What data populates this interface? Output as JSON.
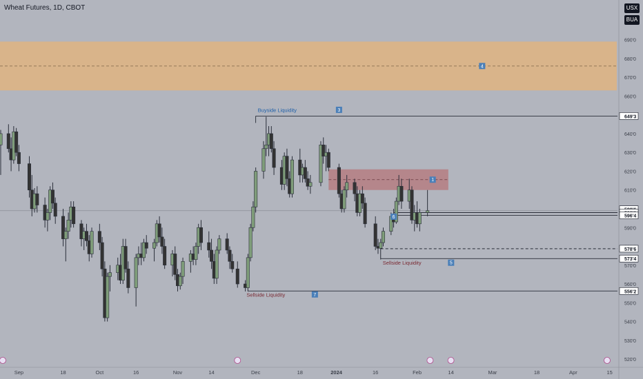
{
  "header": {
    "title": "Wheat Futures, 1D, CBOT",
    "currency": "USX",
    "unit": "BUA"
  },
  "colors": {
    "background": "#b2b5be",
    "up_candle": "#7f9d7a",
    "down_candle": "#333333",
    "supply_zone": "#d9b48a",
    "ob_zone": "#b57e83",
    "buyside_text": "#1e5fa8",
    "sellside_text": "#7a2a33",
    "marker": "#4a7fb8"
  },
  "chart_data": {
    "type": "candlestick",
    "symbol": "Wheat Futures",
    "interval": "1D",
    "exchange": "CBOT",
    "y_axis": {
      "ticks": [
        "690'0",
        "680'0",
        "670'0",
        "660'0",
        "650'0",
        "640'0",
        "630'0",
        "620'0",
        "610'0",
        "600'0",
        "590'0",
        "580'0",
        "570'0",
        "560'0",
        "550'0",
        "540'0",
        "530'0",
        "520'0"
      ],
      "tick_values": [
        690,
        680,
        670,
        660,
        650,
        640,
        630,
        620,
        610,
        600,
        590,
        580,
        570,
        560,
        550,
        540,
        530,
        520
      ],
      "range": [
        516,
        706
      ]
    },
    "x_axis": {
      "ticks": [
        "Sep",
        "18",
        "Oct",
        "16",
        "Nov",
        "14",
        "Dec",
        "18",
        "2024",
        "16",
        "Feb",
        "14",
        "Mar",
        "18",
        "Apr",
        "15"
      ],
      "start_date": "2023-08-25",
      "end_date": "2024-04-18"
    },
    "price_labels": [
      {
        "text": "649'3",
        "value": 649.375
      },
      {
        "text": "599'6",
        "value": 599.75
      },
      {
        "text": "598'0",
        "value": 598.0
      },
      {
        "text": "596'4",
        "value": 596.5
      },
      {
        "text": "578'6",
        "value": 578.75
      },
      {
        "text": "573'4",
        "value": 573.5
      },
      {
        "text": "556'2",
        "value": 556.25
      }
    ],
    "zones": [
      {
        "label": "4",
        "from_date": "2023-08-25",
        "to_date": "2024-03-28",
        "high": 689,
        "low": 663
      },
      {
        "label": "1",
        "from_date": "2023-12-29",
        "to_date": "2024-02-13",
        "high": 621,
        "low": 610
      }
    ],
    "levels": [
      {
        "label": "Buyside Liquidity",
        "marker": "3",
        "value": 649.375,
        "from_date": "2023-12-01",
        "style": "solid"
      },
      {
        "label": "Sellside Liquidity",
        "marker": "7",
        "value": 556.25,
        "from_date": "2023-11-28",
        "style": "solid"
      },
      {
        "label": "Sellside Liquidity",
        "marker": "5",
        "value": 573.5,
        "from_date": "2024-01-18",
        "style": "solid"
      },
      {
        "label": "",
        "marker": "",
        "value": 578.75,
        "from_date": "2024-01-18",
        "style": "dashed"
      },
      {
        "label": "",
        "marker": "6",
        "value": 598.0,
        "from_date": "2024-01-23",
        "style": "solid"
      },
      {
        "label": "",
        "marker": "",
        "value": 596.5,
        "from_date": "2024-01-23",
        "style": "solid"
      }
    ],
    "candles": [
      {
        "d": "2023-08-25",
        "o": 634,
        "h": 642,
        "l": 618,
        "c": 640
      },
      {
        "d": "2023-08-28",
        "o": 640,
        "h": 645,
        "l": 630,
        "c": 632
      },
      {
        "d": "2023-08-29",
        "o": 632,
        "h": 638,
        "l": 620,
        "c": 626
      },
      {
        "d": "2023-08-30",
        "o": 626,
        "h": 644,
        "l": 624,
        "c": 641
      },
      {
        "d": "2023-08-31",
        "o": 641,
        "h": 643,
        "l": 628,
        "c": 630
      },
      {
        "d": "2023-09-01",
        "o": 630,
        "h": 634,
        "l": 620,
        "c": 624
      },
      {
        "d": "2023-09-05",
        "o": 624,
        "h": 628,
        "l": 606,
        "c": 610
      },
      {
        "d": "2023-09-06",
        "o": 610,
        "h": 618,
        "l": 596,
        "c": 600
      },
      {
        "d": "2023-09-07",
        "o": 600,
        "h": 611,
        "l": 598,
        "c": 608
      },
      {
        "d": "2023-09-08",
        "o": 608,
        "h": 612,
        "l": 598,
        "c": 602
      },
      {
        "d": "2023-09-11",
        "o": 602,
        "h": 606,
        "l": 590,
        "c": 594
      },
      {
        "d": "2023-09-12",
        "o": 594,
        "h": 600,
        "l": 588,
        "c": 598
      },
      {
        "d": "2023-09-13",
        "o": 598,
        "h": 612,
        "l": 594,
        "c": 610
      },
      {
        "d": "2023-09-14",
        "o": 610,
        "h": 614,
        "l": 600,
        "c": 603
      },
      {
        "d": "2023-09-15",
        "o": 603,
        "h": 606,
        "l": 592,
        "c": 596
      },
      {
        "d": "2023-09-18",
        "o": 596,
        "h": 600,
        "l": 580,
        "c": 584
      },
      {
        "d": "2023-09-19",
        "o": 584,
        "h": 590,
        "l": 572,
        "c": 588
      },
      {
        "d": "2023-09-20",
        "o": 588,
        "h": 598,
        "l": 584,
        "c": 594
      },
      {
        "d": "2023-09-21",
        "o": 594,
        "h": 604,
        "l": 590,
        "c": 601
      },
      {
        "d": "2023-09-22",
        "o": 601,
        "h": 604,
        "l": 590,
        "c": 592
      },
      {
        "d": "2023-09-25",
        "o": 592,
        "h": 594,
        "l": 580,
        "c": 584
      },
      {
        "d": "2023-09-26",
        "o": 584,
        "h": 590,
        "l": 578,
        "c": 588
      },
      {
        "d": "2023-09-27",
        "o": 588,
        "h": 592,
        "l": 580,
        "c": 583
      },
      {
        "d": "2023-09-28",
        "o": 583,
        "h": 586,
        "l": 572,
        "c": 576
      },
      {
        "d": "2023-09-29",
        "o": 576,
        "h": 590,
        "l": 574,
        "c": 588
      },
      {
        "d": "2023-10-02",
        "o": 588,
        "h": 592,
        "l": 578,
        "c": 582
      },
      {
        "d": "2023-10-03",
        "o": 582,
        "h": 585,
        "l": 564,
        "c": 568
      },
      {
        "d": "2023-10-04",
        "o": 568,
        "h": 572,
        "l": 540,
        "c": 542
      },
      {
        "d": "2023-10-05",
        "o": 542,
        "h": 566,
        "l": 540,
        "c": 564
      },
      {
        "d": "2023-10-06",
        "o": 564,
        "h": 570,
        "l": 556,
        "c": 566
      },
      {
        "d": "2023-10-09",
        "o": 566,
        "h": 574,
        "l": 562,
        "c": 570
      },
      {
        "d": "2023-10-10",
        "o": 570,
        "h": 576,
        "l": 560,
        "c": 562
      },
      {
        "d": "2023-10-11",
        "o": 562,
        "h": 584,
        "l": 560,
        "c": 580
      },
      {
        "d": "2023-10-12",
        "o": 580,
        "h": 584,
        "l": 566,
        "c": 568
      },
      {
        "d": "2023-10-13",
        "o": 568,
        "h": 572,
        "l": 555,
        "c": 558
      },
      {
        "d": "2023-10-16",
        "o": 558,
        "h": 576,
        "l": 548,
        "c": 574
      },
      {
        "d": "2023-10-17",
        "o": 574,
        "h": 580,
        "l": 570,
        "c": 576
      },
      {
        "d": "2023-10-18",
        "o": 576,
        "h": 582,
        "l": 570,
        "c": 574
      },
      {
        "d": "2023-10-19",
        "o": 574,
        "h": 584,
        "l": 572,
        "c": 582
      },
      {
        "d": "2023-10-20",
        "o": 582,
        "h": 586,
        "l": 576,
        "c": 579
      },
      {
        "d": "2023-10-23",
        "o": 579,
        "h": 584,
        "l": 572,
        "c": 582
      },
      {
        "d": "2023-10-24",
        "o": 582,
        "h": 594,
        "l": 580,
        "c": 592
      },
      {
        "d": "2023-10-25",
        "o": 592,
        "h": 596,
        "l": 582,
        "c": 585
      },
      {
        "d": "2023-10-26",
        "o": 585,
        "h": 590,
        "l": 576,
        "c": 580
      },
      {
        "d": "2023-10-27",
        "o": 580,
        "h": 584,
        "l": 568,
        "c": 570
      },
      {
        "d": "2023-10-30",
        "o": 570,
        "h": 578,
        "l": 564,
        "c": 576
      },
      {
        "d": "2023-10-31",
        "o": 576,
        "h": 580,
        "l": 562,
        "c": 565
      },
      {
        "d": "2023-11-01",
        "o": 565,
        "h": 568,
        "l": 556,
        "c": 559
      },
      {
        "d": "2023-11-02",
        "o": 559,
        "h": 566,
        "l": 557,
        "c": 564
      },
      {
        "d": "2023-11-03",
        "o": 564,
        "h": 574,
        "l": 560,
        "c": 572
      },
      {
        "d": "2023-11-06",
        "o": 572,
        "h": 578,
        "l": 566,
        "c": 576
      },
      {
        "d": "2023-11-07",
        "o": 576,
        "h": 580,
        "l": 570,
        "c": 573
      },
      {
        "d": "2023-11-08",
        "o": 573,
        "h": 582,
        "l": 570,
        "c": 580
      },
      {
        "d": "2023-11-09",
        "o": 580,
        "h": 592,
        "l": 576,
        "c": 590
      },
      {
        "d": "2023-11-10",
        "o": 590,
        "h": 594,
        "l": 578,
        "c": 582
      },
      {
        "d": "2023-11-13",
        "o": 582,
        "h": 588,
        "l": 574,
        "c": 578
      },
      {
        "d": "2023-11-14",
        "o": 578,
        "h": 584,
        "l": 568,
        "c": 572
      },
      {
        "d": "2023-11-15",
        "o": 572,
        "h": 576,
        "l": 560,
        "c": 563
      },
      {
        "d": "2023-11-16",
        "o": 563,
        "h": 580,
        "l": 560,
        "c": 578
      },
      {
        "d": "2023-11-17",
        "o": 578,
        "h": 586,
        "l": 576,
        "c": 584
      },
      {
        "d": "2023-11-20",
        "o": 584,
        "h": 587,
        "l": 576,
        "c": 578
      },
      {
        "d": "2023-11-21",
        "o": 578,
        "h": 580,
        "l": 568,
        "c": 572
      },
      {
        "d": "2023-11-22",
        "o": 572,
        "h": 576,
        "l": 566,
        "c": 568
      },
      {
        "d": "2023-11-24",
        "o": 568,
        "h": 572,
        "l": 558,
        "c": 560
      },
      {
        "d": "2023-11-27",
        "o": 560,
        "h": 562,
        "l": 556,
        "c": 558
      },
      {
        "d": "2023-11-28",
        "o": 558,
        "h": 576,
        "l": 556,
        "c": 574
      },
      {
        "d": "2023-11-29",
        "o": 574,
        "h": 592,
        "l": 572,
        "c": 590
      },
      {
        "d": "2023-11-30",
        "o": 590,
        "h": 604,
        "l": 588,
        "c": 601
      },
      {
        "d": "2023-12-01",
        "o": 601,
        "h": 622,
        "l": 598,
        "c": 620
      },
      {
        "d": "2023-12-04",
        "o": 620,
        "h": 636,
        "l": 616,
        "c": 632
      },
      {
        "d": "2023-12-05",
        "o": 632,
        "h": 649,
        "l": 628,
        "c": 634
      },
      {
        "d": "2023-12-06",
        "o": 634,
        "h": 644,
        "l": 628,
        "c": 640
      },
      {
        "d": "2023-12-07",
        "o": 640,
        "h": 644,
        "l": 630,
        "c": 632
      },
      {
        "d": "2023-12-08",
        "o": 632,
        "h": 636,
        "l": 618,
        "c": 622
      },
      {
        "d": "2023-12-11",
        "o": 622,
        "h": 626,
        "l": 610,
        "c": 613
      },
      {
        "d": "2023-12-12",
        "o": 613,
        "h": 630,
        "l": 610,
        "c": 628
      },
      {
        "d": "2023-12-13",
        "o": 628,
        "h": 632,
        "l": 612,
        "c": 616
      },
      {
        "d": "2023-12-14",
        "o": 616,
        "h": 620,
        "l": 606,
        "c": 608
      },
      {
        "d": "2023-12-15",
        "o": 608,
        "h": 628,
        "l": 606,
        "c": 626
      },
      {
        "d": "2023-12-18",
        "o": 626,
        "h": 632,
        "l": 614,
        "c": 618
      },
      {
        "d": "2023-12-19",
        "o": 618,
        "h": 624,
        "l": 614,
        "c": 622
      },
      {
        "d": "2023-12-20",
        "o": 622,
        "h": 626,
        "l": 614,
        "c": 616
      },
      {
        "d": "2023-12-21",
        "o": 616,
        "h": 620,
        "l": 610,
        "c": 612
      },
      {
        "d": "2023-12-22",
        "o": 612,
        "h": 618,
        "l": 608,
        "c": 614
      },
      {
        "d": "2023-12-26",
        "o": 614,
        "h": 636,
        "l": 612,
        "c": 634
      },
      {
        "d": "2023-12-27",
        "o": 634,
        "h": 638,
        "l": 624,
        "c": 628
      },
      {
        "d": "2023-12-28",
        "o": 628,
        "h": 634,
        "l": 620,
        "c": 630
      },
      {
        "d": "2023-12-29",
        "o": 630,
        "h": 632,
        "l": 620,
        "c": 622
      },
      {
        "d": "2024-01-02",
        "o": 622,
        "h": 624,
        "l": 606,
        "c": 608
      },
      {
        "d": "2024-01-03",
        "o": 608,
        "h": 610,
        "l": 598,
        "c": 600
      },
      {
        "d": "2024-01-04",
        "o": 600,
        "h": 612,
        "l": 598,
        "c": 610
      },
      {
        "d": "2024-01-05",
        "o": 610,
        "h": 618,
        "l": 606,
        "c": 614
      },
      {
        "d": "2024-01-08",
        "o": 614,
        "h": 616,
        "l": 604,
        "c": 608
      },
      {
        "d": "2024-01-09",
        "o": 608,
        "h": 612,
        "l": 596,
        "c": 598
      },
      {
        "d": "2024-01-10",
        "o": 598,
        "h": 610,
        "l": 596,
        "c": 608
      },
      {
        "d": "2024-01-11",
        "o": 608,
        "h": 612,
        "l": 600,
        "c": 603
      },
      {
        "d": "2024-01-12",
        "o": 603,
        "h": 606,
        "l": 590,
        "c": 592
      },
      {
        "d": "2024-01-16",
        "o": 592,
        "h": 596,
        "l": 578,
        "c": 580
      },
      {
        "d": "2024-01-17",
        "o": 580,
        "h": 584,
        "l": 576,
        "c": 579
      },
      {
        "d": "2024-01-18",
        "o": 579,
        "h": 584,
        "l": 573,
        "c": 582
      },
      {
        "d": "2024-01-19",
        "o": 582,
        "h": 590,
        "l": 580,
        "c": 588
      },
      {
        "d": "2024-01-22",
        "o": 588,
        "h": 598,
        "l": 586,
        "c": 596
      },
      {
        "d": "2024-01-23",
        "o": 596,
        "h": 600,
        "l": 590,
        "c": 593
      },
      {
        "d": "2024-01-24",
        "o": 593,
        "h": 606,
        "l": 592,
        "c": 604
      },
      {
        "d": "2024-01-25",
        "o": 604,
        "h": 618,
        "l": 602,
        "c": 612
      },
      {
        "d": "2024-01-26",
        "o": 612,
        "h": 616,
        "l": 600,
        "c": 604
      },
      {
        "d": "2024-01-29",
        "o": 604,
        "h": 616,
        "l": 600,
        "c": 610
      },
      {
        "d": "2024-01-30",
        "o": 610,
        "h": 612,
        "l": 592,
        "c": 594
      },
      {
        "d": "2024-01-31",
        "o": 594,
        "h": 602,
        "l": 588,
        "c": 598
      },
      {
        "d": "2024-02-01",
        "o": 598,
        "h": 604,
        "l": 590,
        "c": 592
      },
      {
        "d": "2024-02-02",
        "o": 592,
        "h": 600,
        "l": 588,
        "c": 598
      },
      {
        "d": "2024-02-05",
        "o": 598,
        "h": 610,
        "l": 596,
        "c": 599
      }
    ]
  },
  "annotations": {
    "buyside_label": "Buyside Liquidity",
    "buyside_marker": "3",
    "sellside_label_1": "Sellside Liquidity",
    "sellside_marker_1": "7",
    "sellside_label_2": "Sellside Liquidity",
    "sellside_marker_2": "5",
    "zone_marker_4": "4",
    "zone_marker_1": "1",
    "level_marker_6": "6"
  }
}
